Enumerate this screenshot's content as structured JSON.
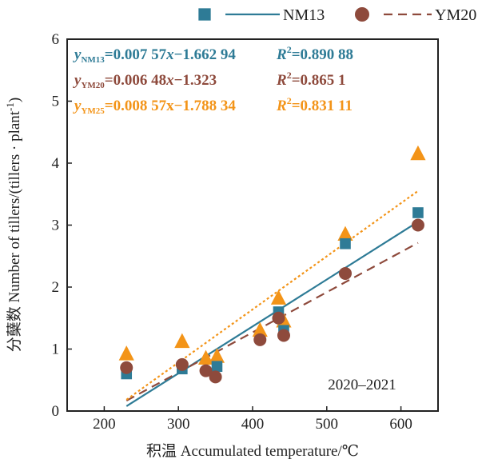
{
  "chart_data": {
    "type": "scatter",
    "title": "",
    "xlabel": "积温 Accumulated temperature/℃",
    "ylabel_prefix": "分蘖数 Number of tillers/(tillers · plant",
    "ylabel_sup": "-1",
    "ylabel_suffix": ")",
    "xlim": [
      150,
      650
    ],
    "ylim": [
      0,
      6
    ],
    "xticks": [
      200,
      300,
      400,
      500,
      600
    ],
    "yticks": [
      0,
      1,
      2,
      3,
      4,
      5,
      6
    ],
    "period_label": "2020–2021",
    "legend_position": "top",
    "series": [
      {
        "name": "NM13",
        "marker": "square",
        "color": "#2e7b96",
        "fit_line_style": "solid",
        "points": [
          [
            230,
            0.6
          ],
          [
            305,
            0.68
          ],
          [
            352,
            0.72
          ],
          [
            435,
            1.6
          ],
          [
            442,
            1.3
          ],
          [
            525,
            2.7
          ],
          [
            623,
            3.2
          ]
        ],
        "fit": {
          "slope": 0.00757,
          "intercept": -1.66294,
          "x_range": [
            230,
            623
          ]
        },
        "equation": {
          "y_sub": "NM13",
          "rhs": "=0.007 57",
          "tail": "−1.662 94",
          "r2_value": "=0.890 88"
        }
      },
      {
        "name": "YM20",
        "marker": "circle",
        "color": "#8e4a3c",
        "fit_line_style": "dashed",
        "points": [
          [
            230,
            0.7
          ],
          [
            305,
            0.75
          ],
          [
            337,
            0.65
          ],
          [
            350,
            0.55
          ],
          [
            410,
            1.15
          ],
          [
            435,
            1.5
          ],
          [
            442,
            1.22
          ],
          [
            525,
            2.22
          ],
          [
            623,
            3.0
          ]
        ],
        "fit": {
          "slope": 0.00648,
          "intercept": -1.323,
          "x_range": [
            230,
            623
          ]
        },
        "equation": {
          "y_sub": "YM20",
          "rhs": "=0.006 48",
          "tail": "−1.323",
          "r2_value": "=0.865 1"
        }
      },
      {
        "name": "YM25",
        "marker": "triangle",
        "color": "#f39418",
        "fit_line_style": "dotted",
        "show_in_legend": false,
        "points": [
          [
            230,
            0.92
          ],
          [
            305,
            1.12
          ],
          [
            337,
            0.85
          ],
          [
            352,
            0.88
          ],
          [
            410,
            1.3
          ],
          [
            435,
            1.82
          ],
          [
            442,
            1.45
          ],
          [
            525,
            2.85
          ],
          [
            623,
            4.15
          ]
        ],
        "fit": {
          "slope": 0.00857,
          "intercept": -1.78834,
          "x_range": [
            230,
            623
          ]
        },
        "equation": {
          "y_sub": "YM25",
          "rhs": "=0.008 57x",
          "tail": "−1.788 34",
          "r2_value": "=0.831 11"
        }
      }
    ]
  }
}
